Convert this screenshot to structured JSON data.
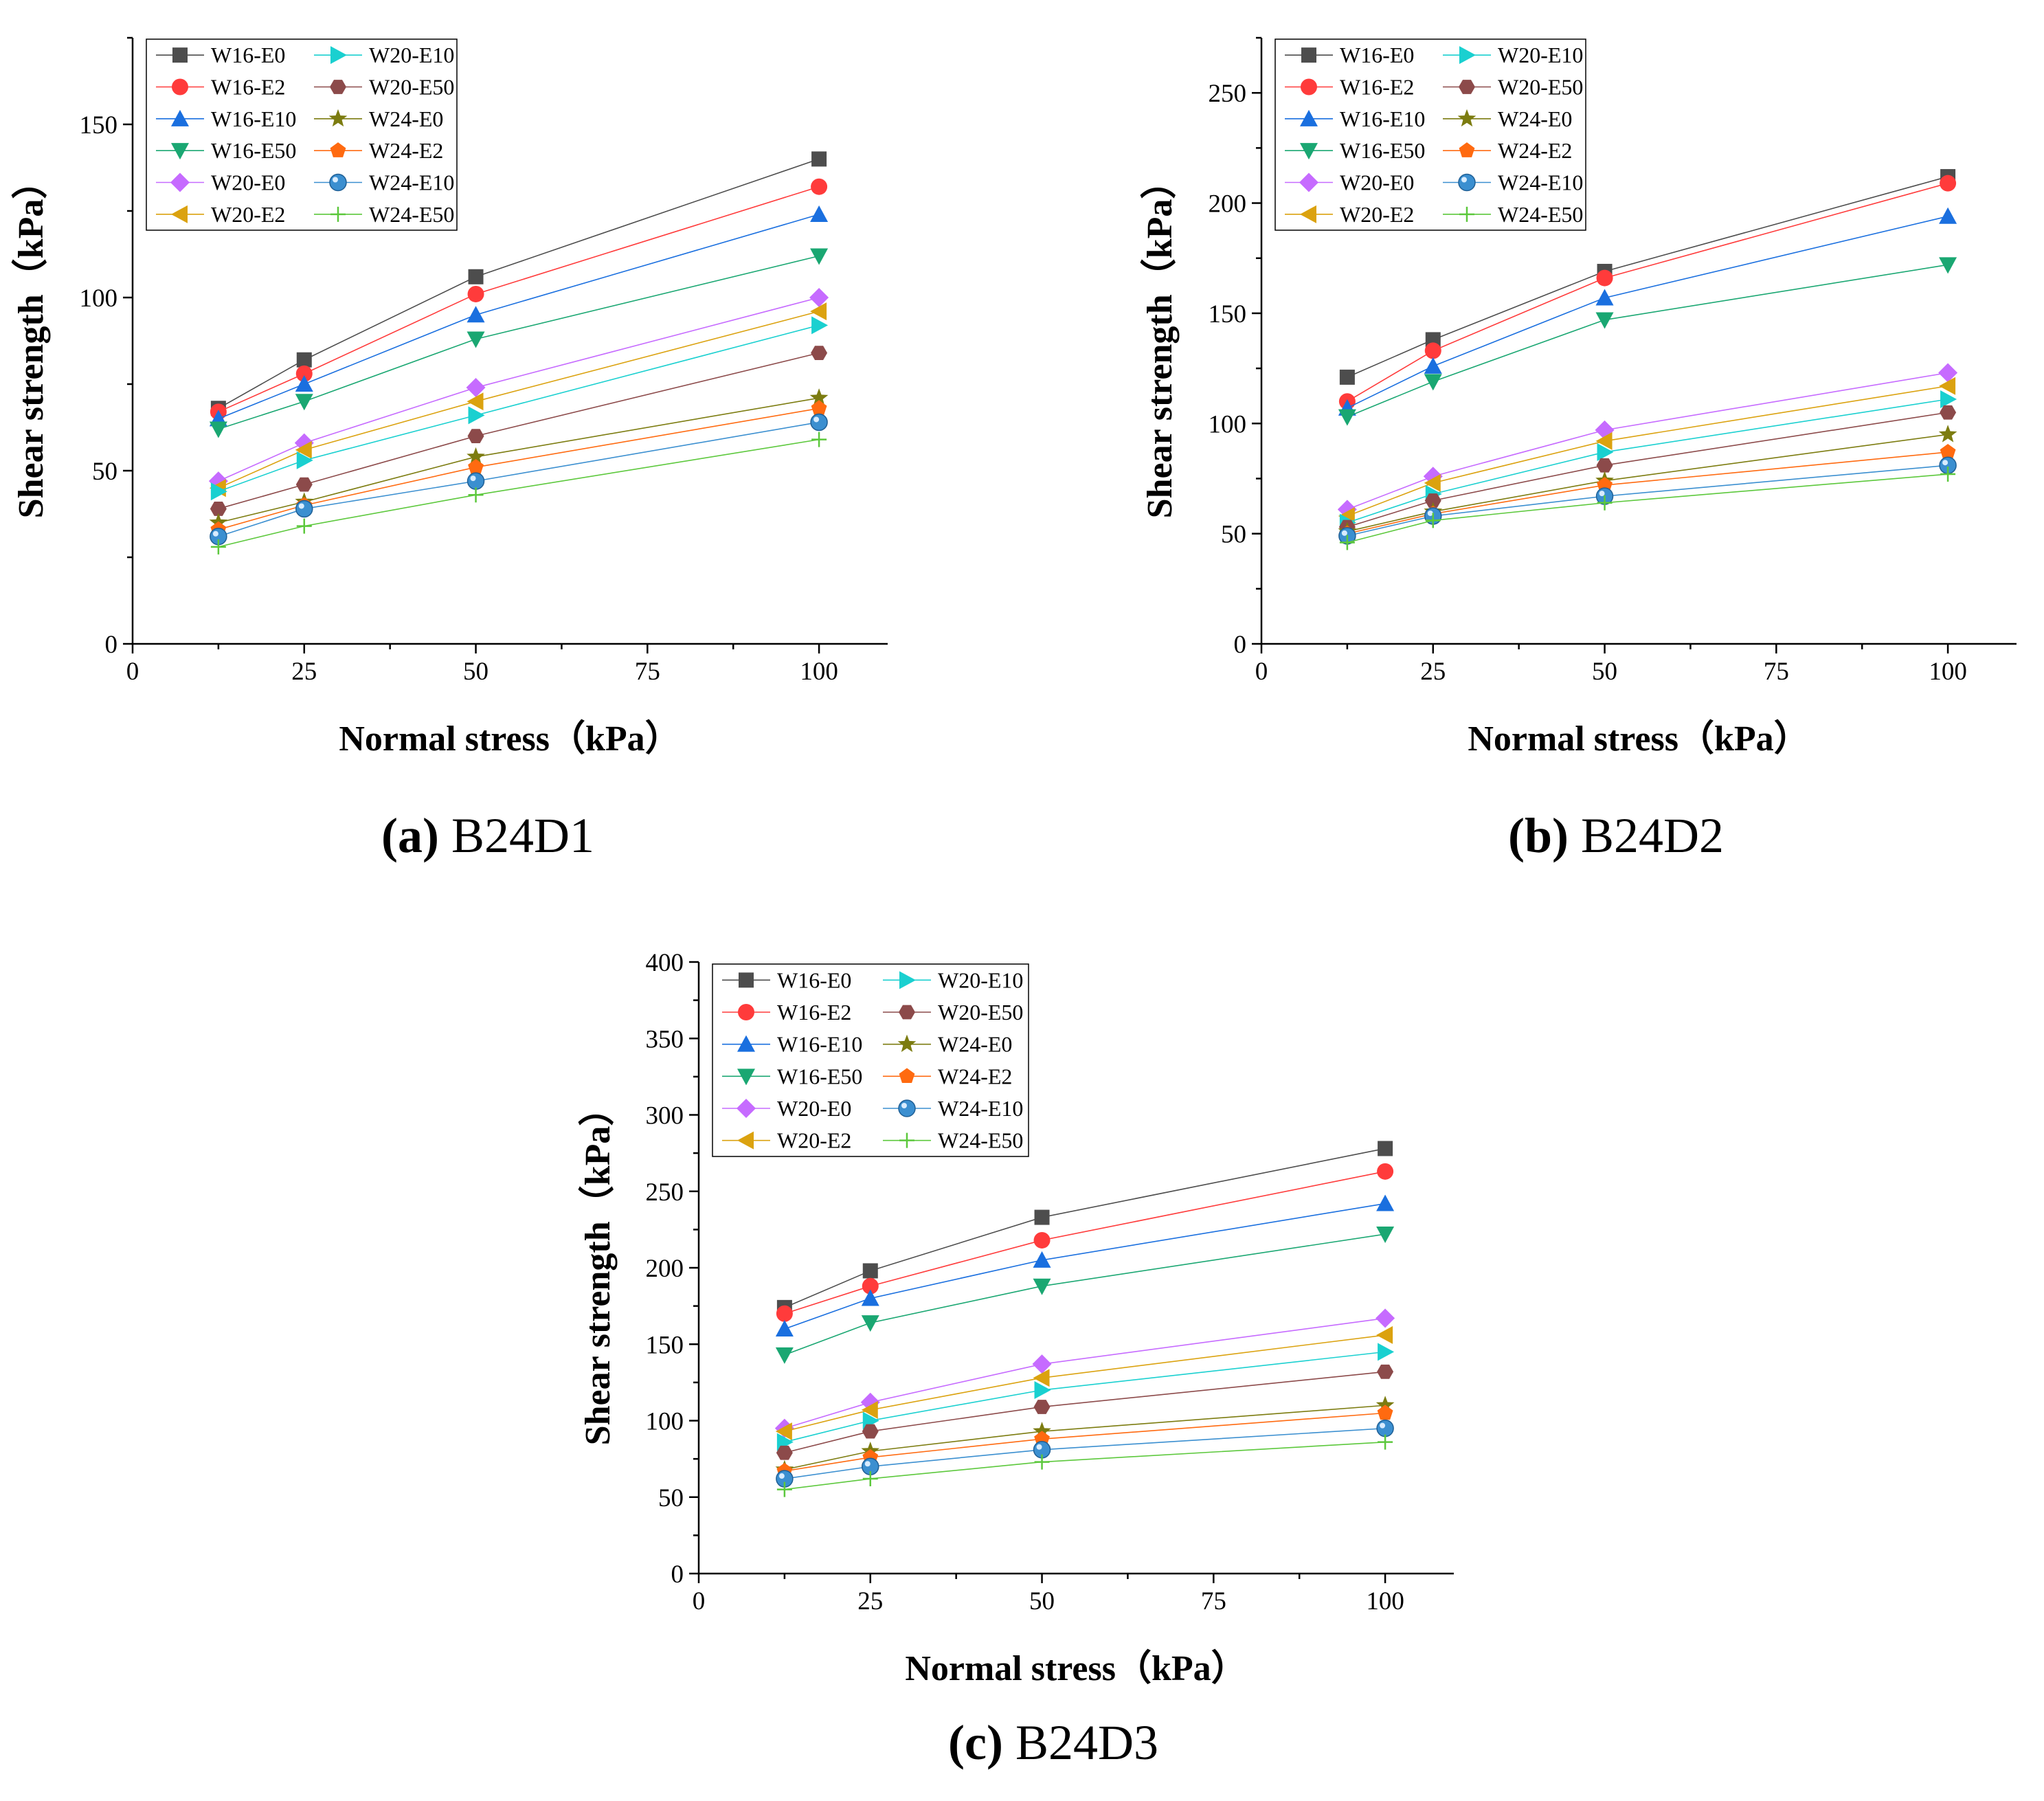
{
  "figure": {
    "xlabel": "Normal stress（kPa）",
    "ylabel": "Shear strength（kPa）"
  },
  "series_styles": [
    {
      "name": "W16-E0",
      "color": "#4d4d4d",
      "marker": "square"
    },
    {
      "name": "W16-E2",
      "color": "#ff3b3b",
      "marker": "circle"
    },
    {
      "name": "W16-E10",
      "color": "#1a6fdf",
      "marker": "triangle-up"
    },
    {
      "name": "W16-E50",
      "color": "#1aa772",
      "marker": "triangle-down"
    },
    {
      "name": "W20-E0",
      "color": "#c66bff",
      "marker": "diamond"
    },
    {
      "name": "W20-E2",
      "color": "#dba20f",
      "marker": "triangle-left"
    },
    {
      "name": "W20-E10",
      "color": "#1ad0d0",
      "marker": "triangle-right"
    },
    {
      "name": "W20-E50",
      "color": "#8c4a4a",
      "marker": "hexagon"
    },
    {
      "name": "W24-E0",
      "color": "#7c7c10",
      "marker": "star"
    },
    {
      "name": "W24-E2",
      "color": "#ff6a10",
      "marker": "pentagon"
    },
    {
      "name": "W24-E10",
      "color": "#3b8fd0",
      "marker": "sphere"
    },
    {
      "name": "W24-E50",
      "color": "#5cc83c",
      "marker": "plus"
    }
  ],
  "chart_data": [
    {
      "type": "line",
      "caption_letter": "(a)",
      "caption_text": " B24D1",
      "xlabel": "Normal stress（kPa）",
      "ylabel": "Shear strength（kPa）",
      "x": [
        12.5,
        25,
        50,
        100
      ],
      "xlim": [
        0,
        110
      ],
      "ylim": [
        0,
        175
      ],
      "xticks": [
        0,
        25,
        50,
        75,
        100
      ],
      "yticks": [
        0,
        50,
        100,
        150
      ],
      "series": [
        {
          "name": "W16-E0",
          "values": [
            68,
            82,
            106,
            140
          ]
        },
        {
          "name": "W16-E2",
          "values": [
            67,
            78,
            101,
            132
          ]
        },
        {
          "name": "W16-E10",
          "values": [
            65,
            75,
            95,
            124
          ]
        },
        {
          "name": "W16-E50",
          "values": [
            62,
            70,
            88,
            112
          ]
        },
        {
          "name": "W20-E0",
          "values": [
            47,
            58,
            74,
            100
          ]
        },
        {
          "name": "W20-E2",
          "values": [
            45,
            56,
            70,
            96
          ]
        },
        {
          "name": "W20-E10",
          "values": [
            44,
            53,
            66,
            92
          ]
        },
        {
          "name": "W20-E50",
          "values": [
            39,
            46,
            60,
            84
          ]
        },
        {
          "name": "W24-E0",
          "values": [
            35,
            41,
            54,
            71
          ]
        },
        {
          "name": "W24-E2",
          "values": [
            33,
            40,
            51,
            68
          ]
        },
        {
          "name": "W24-E10",
          "values": [
            31,
            39,
            47,
            64
          ]
        },
        {
          "name": "W24-E50",
          "values": [
            28,
            34,
            43,
            59
          ]
        }
      ]
    },
    {
      "type": "line",
      "caption_letter": "(b)",
      "caption_text": " B24D2",
      "xlabel": "Normal stress（kPa）",
      "ylabel": "Shear strength（kPa）",
      "x": [
        12.5,
        25,
        50,
        100
      ],
      "xlim": [
        0,
        110
      ],
      "ylim": [
        0,
        275
      ],
      "xticks": [
        0,
        25,
        50,
        75,
        100
      ],
      "yticks": [
        0,
        50,
        100,
        150,
        200,
        250
      ],
      "series": [
        {
          "name": "W16-E0",
          "values": [
            121,
            138,
            169,
            212
          ]
        },
        {
          "name": "W16-E2",
          "values": [
            110,
            133,
            166,
            209
          ]
        },
        {
          "name": "W16-E10",
          "values": [
            107,
            126,
            157,
            194
          ]
        },
        {
          "name": "W16-E50",
          "values": [
            103,
            119,
            147,
            172
          ]
        },
        {
          "name": "W20-E0",
          "values": [
            61,
            76,
            97,
            123
          ]
        },
        {
          "name": "W20-E2",
          "values": [
            58,
            73,
            92,
            117
          ]
        },
        {
          "name": "W20-E10",
          "values": [
            55,
            68,
            87,
            111
          ]
        },
        {
          "name": "W20-E50",
          "values": [
            53,
            65,
            81,
            105
          ]
        },
        {
          "name": "W24-E0",
          "values": [
            51,
            60,
            74,
            95
          ]
        },
        {
          "name": "W24-E2",
          "values": [
            50,
            59,
            72,
            87
          ]
        },
        {
          "name": "W24-E10",
          "values": [
            49,
            58,
            67,
            81
          ]
        },
        {
          "name": "W24-E50",
          "values": [
            46,
            56,
            64,
            77
          ]
        }
      ]
    },
    {
      "type": "line",
      "caption_letter": "(c)",
      "caption_text": " B24D3",
      "xlabel": "Normal stress（kPa）",
      "ylabel": "Shear strength（kPa）",
      "x": [
        12.5,
        25,
        50,
        100
      ],
      "xlim": [
        0,
        110
      ],
      "ylim": [
        0,
        400
      ],
      "xticks": [
        0,
        25,
        50,
        75,
        100
      ],
      "yticks": [
        0,
        50,
        100,
        150,
        200,
        250,
        300,
        350,
        400
      ],
      "series": [
        {
          "name": "W16-E0",
          "values": [
            174,
            198,
            233,
            278
          ]
        },
        {
          "name": "W16-E2",
          "values": [
            170,
            188,
            218,
            263
          ]
        },
        {
          "name": "W16-E10",
          "values": [
            160,
            180,
            205,
            242
          ]
        },
        {
          "name": "W16-E50",
          "values": [
            143,
            164,
            188,
            222
          ]
        },
        {
          "name": "W20-E0",
          "values": [
            95,
            112,
            137,
            167
          ]
        },
        {
          "name": "W20-E2",
          "values": [
            93,
            107,
            128,
            156
          ]
        },
        {
          "name": "W20-E10",
          "values": [
            86,
            100,
            120,
            145
          ]
        },
        {
          "name": "W20-E50",
          "values": [
            79,
            93,
            109,
            132
          ]
        },
        {
          "name": "W24-E0",
          "values": [
            68,
            80,
            93,
            110
          ]
        },
        {
          "name": "W24-E2",
          "values": [
            67,
            76,
            88,
            105
          ]
        },
        {
          "name": "W24-E10",
          "values": [
            62,
            70,
            81,
            95
          ]
        },
        {
          "name": "W24-E50",
          "values": [
            55,
            62,
            73,
            86
          ]
        }
      ]
    }
  ]
}
